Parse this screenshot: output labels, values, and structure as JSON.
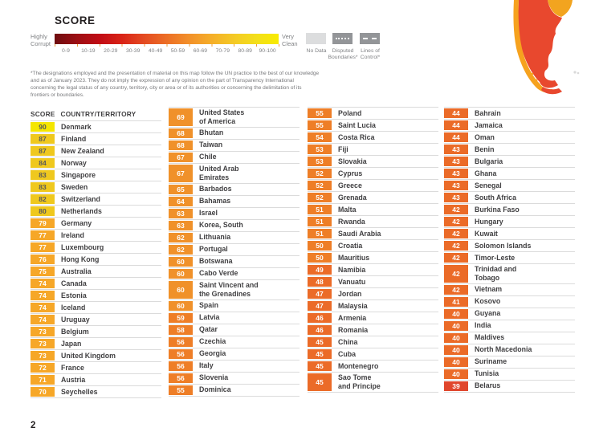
{
  "page": {
    "number": "2"
  },
  "legend": {
    "title": "SCORE",
    "left_label": "Highly\nCorrupt",
    "right_label": "Very\nClean",
    "ticks": [
      "0-9",
      "10-19",
      "20-29",
      "30-39",
      "40-49",
      "50-59",
      "60-69",
      "70-79",
      "80-89",
      "90-100"
    ],
    "gradient_colors": [
      "#6E0D10",
      "#9C0F14",
      "#C10C15",
      "#D92317",
      "#E44B22",
      "#EC6E26",
      "#F2902A",
      "#F5AE29",
      "#F4C925",
      "#F3DF1B",
      "#F8EB00"
    ],
    "no_data": {
      "label": "No Data",
      "color": "#DCDDDE"
    },
    "disputed": {
      "label": "Disputed\nBoundaries*",
      "color": "#939598"
    },
    "lines_of_control": {
      "label": "Lines of\nControl*",
      "color": "#939598"
    },
    "footnote": "*The designations employed and the presentation of material on this map follow the UN practice to the best of our knowledge and as of January 2023. They do not imply the expression of any opinion on the part of Transparency International concerning the legal status of any country, territory, city or area or of its authorities or concerning the delimitation of its frontiers or boundaries."
  },
  "map_fragment": {
    "chile_color": "#F6A21E",
    "argentina_color": "#E8482E",
    "uruguay_color": "#F2A41F",
    "no_data_color": "#D9D9D9"
  },
  "table": {
    "header": {
      "score": "SCORE",
      "country": "COUNTRY/TERRITORY"
    },
    "score_colors": {
      "90": {
        "bg": "#F4E600",
        "fg": "#58595B"
      },
      "80": {
        "bg": "#EFC81E",
        "fg": "#58595B"
      },
      "70": {
        "bg": "#F6A728",
        "fg": "#FFFFFF"
      },
      "60": {
        "bg": "#F0912A",
        "fg": "#FFFFFF"
      },
      "50": {
        "bg": "#EE7E27",
        "fg": "#FFFFFF"
      },
      "40": {
        "bg": "#EB6B28",
        "fg": "#FFFFFF"
      },
      "30": {
        "bg": "#E0462C",
        "fg": "#FFFFFF"
      }
    },
    "columns": [
      {
        "rows": [
          {
            "score": 90,
            "name": "Denmark"
          },
          {
            "score": 87,
            "name": "Finland"
          },
          {
            "score": 87,
            "name": "New Zealand"
          },
          {
            "score": 84,
            "name": "Norway"
          },
          {
            "score": 83,
            "name": "Singapore"
          },
          {
            "score": 83,
            "name": "Sweden"
          },
          {
            "score": 82,
            "name": "Switzerland"
          },
          {
            "score": 80,
            "name": "Netherlands"
          },
          {
            "score": 79,
            "name": "Germany"
          },
          {
            "score": 77,
            "name": "Ireland"
          },
          {
            "score": 77,
            "name": "Luxembourg"
          },
          {
            "score": 76,
            "name": "Hong Kong"
          },
          {
            "score": 75,
            "name": "Australia"
          },
          {
            "score": 74,
            "name": "Canada"
          },
          {
            "score": 74,
            "name": "Estonia"
          },
          {
            "score": 74,
            "name": "Iceland"
          },
          {
            "score": 74,
            "name": "Uruguay"
          },
          {
            "score": 73,
            "name": "Belgium"
          },
          {
            "score": 73,
            "name": "Japan"
          },
          {
            "score": 73,
            "name": "United Kingdom"
          },
          {
            "score": 72,
            "name": "France"
          },
          {
            "score": 71,
            "name": "Austria"
          },
          {
            "score": 70,
            "name": "Seychelles"
          }
        ]
      },
      {
        "rows": [
          {
            "score": 69,
            "name": "United States\nof America"
          },
          {
            "score": 68,
            "name": "Bhutan"
          },
          {
            "score": 68,
            "name": "Taiwan"
          },
          {
            "score": 67,
            "name": "Chile"
          },
          {
            "score": 67,
            "name": "United Arab\nEmirates"
          },
          {
            "score": 65,
            "name": "Barbados"
          },
          {
            "score": 64,
            "name": "Bahamas"
          },
          {
            "score": 63,
            "name": "Israel"
          },
          {
            "score": 63,
            "name": "Korea, South"
          },
          {
            "score": 62,
            "name": "Lithuania"
          },
          {
            "score": 62,
            "name": "Portugal"
          },
          {
            "score": 60,
            "name": "Botswana"
          },
          {
            "score": 60,
            "name": "Cabo Verde"
          },
          {
            "score": 60,
            "name": "Saint Vincent and\nthe Grenadines"
          },
          {
            "score": 60,
            "name": "Spain"
          },
          {
            "score": 59,
            "name": "Latvia"
          },
          {
            "score": 58,
            "name": "Qatar"
          },
          {
            "score": 56,
            "name": "Czechia"
          },
          {
            "score": 56,
            "name": "Georgia"
          },
          {
            "score": 56,
            "name": "Italy"
          },
          {
            "score": 56,
            "name": "Slovenia"
          },
          {
            "score": 55,
            "name": "Dominica"
          }
        ]
      },
      {
        "rows": [
          {
            "score": 55,
            "name": "Poland"
          },
          {
            "score": 55,
            "name": "Saint Lucia"
          },
          {
            "score": 54,
            "name": "Costa Rica"
          },
          {
            "score": 53,
            "name": "Fiji"
          },
          {
            "score": 53,
            "name": "Slovakia"
          },
          {
            "score": 52,
            "name": "Cyprus"
          },
          {
            "score": 52,
            "name": "Greece"
          },
          {
            "score": 52,
            "name": "Grenada"
          },
          {
            "score": 51,
            "name": "Malta"
          },
          {
            "score": 51,
            "name": "Rwanda"
          },
          {
            "score": 51,
            "name": "Saudi Arabia"
          },
          {
            "score": 50,
            "name": "Croatia"
          },
          {
            "score": 50,
            "name": "Mauritius"
          },
          {
            "score": 49,
            "name": "Namibia"
          },
          {
            "score": 48,
            "name": "Vanuatu"
          },
          {
            "score": 47,
            "name": "Jordan"
          },
          {
            "score": 47,
            "name": "Malaysia"
          },
          {
            "score": 46,
            "name": "Armenia"
          },
          {
            "score": 46,
            "name": "Romania"
          },
          {
            "score": 45,
            "name": "China"
          },
          {
            "score": 45,
            "name": "Cuba"
          },
          {
            "score": 45,
            "name": "Montenegro"
          },
          {
            "score": 45,
            "name": "Sao Tome\nand Principe"
          }
        ]
      },
      {
        "rows": [
          {
            "score": 44,
            "name": "Bahrain"
          },
          {
            "score": 44,
            "name": "Jamaica"
          },
          {
            "score": 44,
            "name": "Oman"
          },
          {
            "score": 43,
            "name": "Benin"
          },
          {
            "score": 43,
            "name": "Bulgaria"
          },
          {
            "score": 43,
            "name": "Ghana"
          },
          {
            "score": 43,
            "name": "Senegal"
          },
          {
            "score": 43,
            "name": "South Africa"
          },
          {
            "score": 42,
            "name": "Burkina Faso"
          },
          {
            "score": 42,
            "name": "Hungary"
          },
          {
            "score": 42,
            "name": "Kuwait"
          },
          {
            "score": 42,
            "name": "Solomon Islands"
          },
          {
            "score": 42,
            "name": "Timor-Leste"
          },
          {
            "score": 42,
            "name": "Trinidad and\nTobago"
          },
          {
            "score": 42,
            "name": "Vietnam"
          },
          {
            "score": 41,
            "name": "Kosovo"
          },
          {
            "score": 40,
            "name": "Guyana"
          },
          {
            "score": 40,
            "name": "India"
          },
          {
            "score": 40,
            "name": "Maldives"
          },
          {
            "score": 40,
            "name": "North Macedonia"
          },
          {
            "score": 40,
            "name": "Suriname"
          },
          {
            "score": 40,
            "name": "Tunisia"
          },
          {
            "score": 39,
            "name": "Belarus"
          }
        ]
      }
    ]
  }
}
